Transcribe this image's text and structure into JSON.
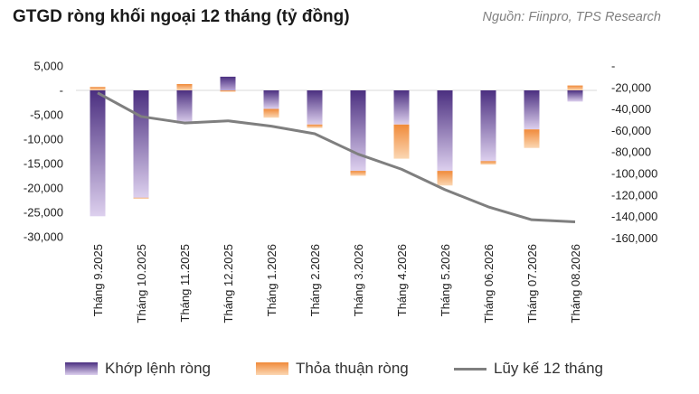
{
  "header": {
    "title": "GTGD ròng khối ngoại 12 tháng (tỷ đồng)",
    "source": "Nguồn: Fiinpro, TPS Research"
  },
  "colors": {
    "khop": "#5b3f8c",
    "thoa": "#f0a05a",
    "luy": "#7f7f7f"
  },
  "chart_data": {
    "type": "bar",
    "categories": [
      "Tháng 9.2025",
      "Tháng 10.2025",
      "Tháng 11.2025",
      "Tháng 12.2025",
      "Tháng 1.2026",
      "Tháng 2.2026",
      "Tháng 3.2026",
      "Tháng 4.2026",
      "Tháng 5.2026",
      "Tháng 06.2026",
      "Tháng 07.2026",
      "Tháng 08.2026"
    ],
    "series": [
      {
        "name": "Khớp lệnh ròng",
        "type": "bar",
        "axis": "left",
        "values": [
          -25800,
          -22000,
          -6800,
          2800,
          -3800,
          -7000,
          -16500,
          -7000,
          -16500,
          -14500,
          -8000,
          -2300
        ]
      },
      {
        "name": "Thỏa thuận ròng",
        "type": "bar",
        "axis": "left",
        "values": [
          700,
          -100,
          1300,
          -300,
          -1800,
          -700,
          -1000,
          -7000,
          -3000,
          -700,
          -3800,
          1000
        ]
      },
      {
        "name": "Lũy kế 12 tháng",
        "type": "line",
        "axis": "right",
        "values": [
          -25000,
          -47000,
          -53000,
          -51000,
          -56000,
          -63000,
          -82000,
          -96000,
          -115000,
          -131000,
          -143000,
          -145000
        ]
      }
    ],
    "y_left": {
      "min": -30000,
      "max": 5000,
      "ticks": [
        "5,000",
        "-",
        "-5,000",
        "-10,000",
        "-15,000",
        "-20,000",
        "-25,000",
        "-30,000"
      ],
      "tick_values": [
        5000,
        0,
        -5000,
        -10000,
        -15000,
        -20000,
        -25000,
        -30000
      ]
    },
    "y_right": {
      "min": -160000,
      "max": 0,
      "ticks": [
        "-",
        "-20,000",
        "-40,000",
        "-60,000",
        "-80,000",
        "-100,000",
        "-120,000",
        "-140,000",
        "-160,000"
      ],
      "tick_values": [
        0,
        -20000,
        -40000,
        -60000,
        -80000,
        -100000,
        -120000,
        -140000,
        -160000
      ]
    },
    "legend_position": "bottom",
    "grid": false
  },
  "legend": {
    "khop": "Khớp lệnh ròng",
    "thoa": "Thỏa thuận ròng",
    "luy": "Lũy kế 12 tháng"
  }
}
